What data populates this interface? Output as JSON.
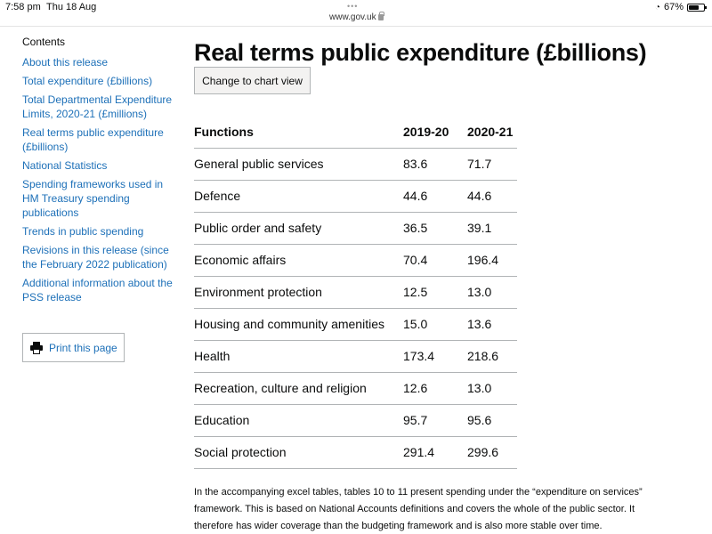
{
  "status_bar": {
    "time": "7:58 pm",
    "date": "Thu 18 Aug",
    "dots": "•••",
    "url": "www.gov.uk",
    "battery": "67%",
    "battery_level": 0.67
  },
  "sidebar": {
    "heading": "Contents",
    "items": [
      {
        "label": "About this release"
      },
      {
        "label": "Total expenditure (£billions)"
      },
      {
        "label": "Total Departmental Expenditure Limits, 2020-21 (£millions)"
      },
      {
        "label": "Real terms public expenditure (£billions)"
      },
      {
        "label": "National Statistics"
      },
      {
        "label": "Spending frameworks used in HM Treasury spending publications"
      },
      {
        "label": "Trends in public spending"
      },
      {
        "label": "Revisions in this release (since the February 2022 publication)"
      },
      {
        "label": "Additional information about the PSS release"
      }
    ],
    "print_label": "Print this page"
  },
  "main": {
    "title": "Real terms public expenditure (£billions)",
    "chart_button": "Change to chart view",
    "table": {
      "headers": [
        "Functions",
        "2019-20",
        "2020-21"
      ],
      "rows": [
        [
          "General public services",
          "83.6",
          "71.7"
        ],
        [
          "Defence",
          "44.6",
          "44.6"
        ],
        [
          "Public order and safety",
          "36.5",
          "39.1"
        ],
        [
          "Economic affairs",
          "70.4",
          "196.4"
        ],
        [
          "Environment protection",
          "12.5",
          "13.0"
        ],
        [
          "Housing and community amenities",
          "15.0",
          "13.6"
        ],
        [
          "Health",
          "173.4",
          "218.6"
        ],
        [
          "Recreation, culture and religion",
          "12.6",
          "13.0"
        ],
        [
          "Education",
          "95.7",
          "95.6"
        ],
        [
          "Social protection",
          "291.4",
          "299.6"
        ]
      ]
    },
    "paragraph": "In the accompanying excel tables, tables 10 to 11 present spending under the “expenditure on services” framework. This is based on National Accounts definitions and covers the whole of the public sector. It therefore has wider coverage than the budgeting framework and is also more stable over time."
  }
}
